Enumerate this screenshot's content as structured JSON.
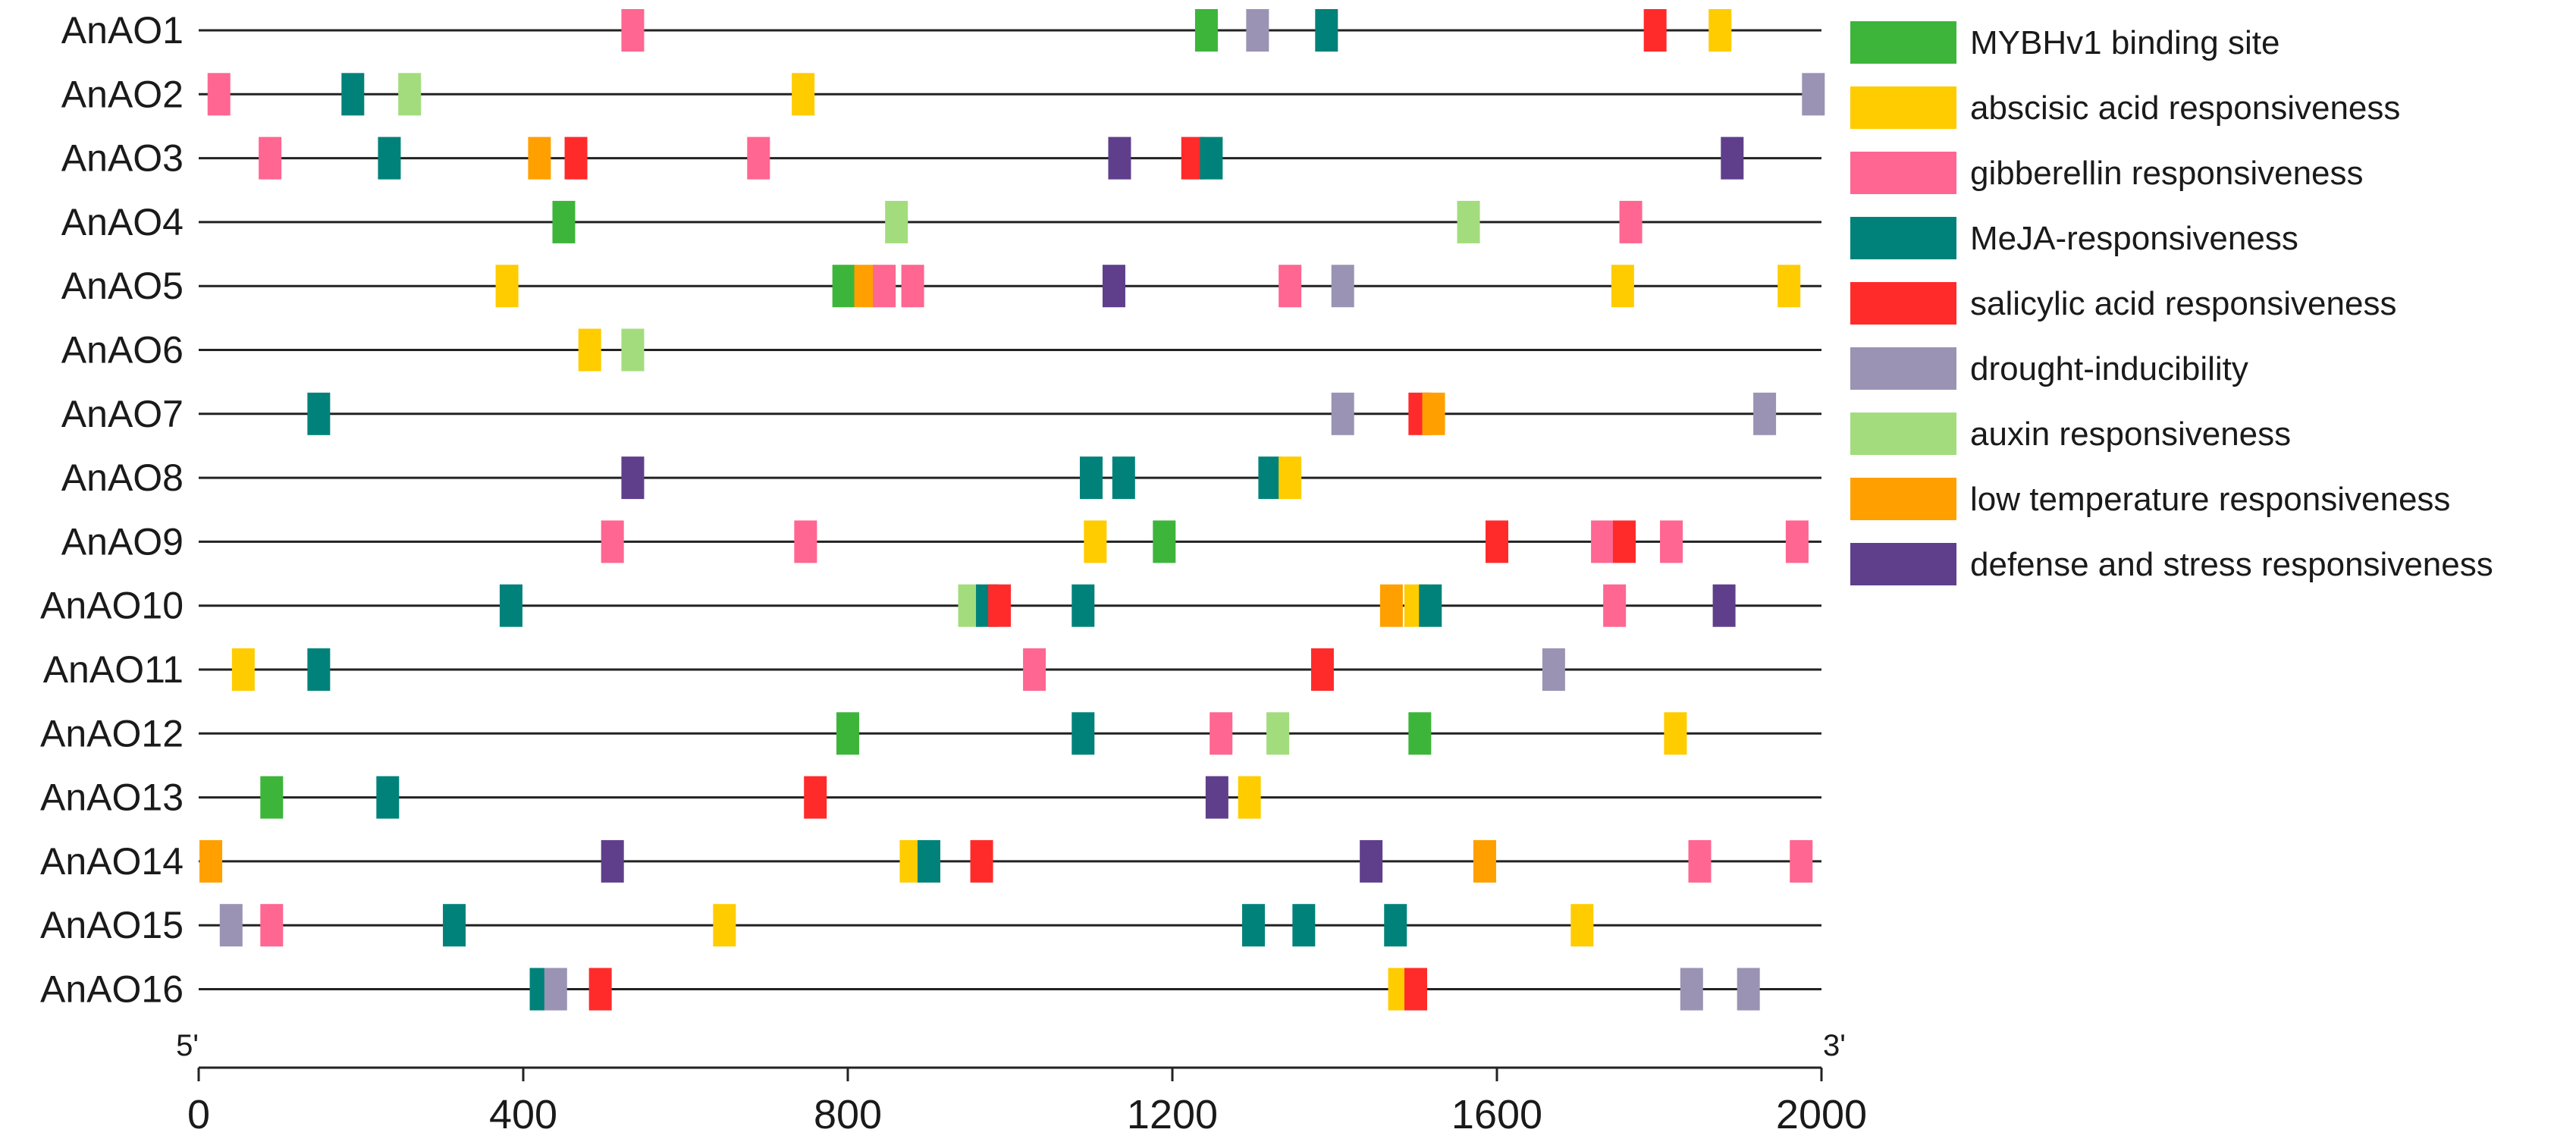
{
  "chart_data": {
    "type": "promoter-element-map",
    "x_axis": {
      "min": 0,
      "max": 2000,
      "ticks": [
        0,
        400,
        800,
        1200,
        1600,
        2000
      ],
      "start_label": "5'",
      "end_label": "3'"
    },
    "elements": [
      {
        "key": "mybhv1",
        "label": "MYBHv1 binding site",
        "color": "#3db53a"
      },
      {
        "key": "aba",
        "label": "abscisic acid responsiveness",
        "color": "#ffcc00"
      },
      {
        "key": "ga",
        "label": "gibberellin responsiveness",
        "color": "#ff6691"
      },
      {
        "key": "meja",
        "label": "MeJA-responsiveness",
        "color": "#00827a"
      },
      {
        "key": "sa",
        "label": "salicylic acid responsiveness",
        "color": "#ff2b2b"
      },
      {
        "key": "drought",
        "label": "drought-inducibility",
        "color": "#9b93b4"
      },
      {
        "key": "auxin",
        "label": "auxin responsiveness",
        "color": "#a3dc7d"
      },
      {
        "key": "lowtemp",
        "label": "low temperature responsiveness",
        "color": "#ffa000"
      },
      {
        "key": "defense",
        "label": "defense and stress responsiveness",
        "color": "#5f3f8c"
      }
    ],
    "genes": [
      {
        "name": "AnAO1",
        "sites": [
          [
            535,
            "ga"
          ],
          [
            1242,
            "mybhv1"
          ],
          [
            1305,
            "drought"
          ],
          [
            1390,
            "meja"
          ],
          [
            1795,
            "sa"
          ],
          [
            1875,
            "aba"
          ]
        ]
      },
      {
        "name": "AnAO2",
        "sites": [
          [
            25,
            "ga"
          ],
          [
            190,
            "meja"
          ],
          [
            260,
            "auxin"
          ],
          [
            745,
            "aba"
          ],
          [
            1990,
            "drought"
          ]
        ]
      },
      {
        "name": "AnAO3",
        "sites": [
          [
            88,
            "ga"
          ],
          [
            235,
            "meja"
          ],
          [
            420,
            "lowtemp"
          ],
          [
            465,
            "sa"
          ],
          [
            690,
            "ga"
          ],
          [
            1135,
            "defense"
          ],
          [
            1225,
            "sa"
          ],
          [
            1248,
            "meja"
          ],
          [
            1890,
            "defense"
          ]
        ]
      },
      {
        "name": "AnAO4",
        "sites": [
          [
            450,
            "mybhv1"
          ],
          [
            860,
            "auxin"
          ],
          [
            1565,
            "auxin"
          ],
          [
            1765,
            "ga"
          ]
        ]
      },
      {
        "name": "AnAO5",
        "sites": [
          [
            380,
            "aba"
          ],
          [
            795,
            "mybhv1"
          ],
          [
            822,
            "lowtemp"
          ],
          [
            845,
            "ga"
          ],
          [
            880,
            "ga"
          ],
          [
            1128,
            "defense"
          ],
          [
            1345,
            "ga"
          ],
          [
            1410,
            "drought"
          ],
          [
            1755,
            "aba"
          ],
          [
            1960,
            "aba"
          ]
        ]
      },
      {
        "name": "AnAO6",
        "sites": [
          [
            482,
            "aba"
          ],
          [
            535,
            "auxin"
          ]
        ]
      },
      {
        "name": "AnAO7",
        "sites": [
          [
            148,
            "meja"
          ],
          [
            1410,
            "drought"
          ],
          [
            1505,
            "sa"
          ],
          [
            1522,
            "lowtemp"
          ],
          [
            1930,
            "drought"
          ]
        ]
      },
      {
        "name": "AnAO8",
        "sites": [
          [
            535,
            "defense"
          ],
          [
            1100,
            "meja"
          ],
          [
            1140,
            "meja"
          ],
          [
            1320,
            "meja"
          ],
          [
            1345,
            "aba"
          ]
        ]
      },
      {
        "name": "AnAO9",
        "sites": [
          [
            510,
            "ga"
          ],
          [
            748,
            "ga"
          ],
          [
            1105,
            "aba"
          ],
          [
            1190,
            "mybhv1"
          ],
          [
            1600,
            "sa"
          ],
          [
            1730,
            "ga"
          ],
          [
            1757,
            "sa"
          ],
          [
            1815,
            "ga"
          ],
          [
            1970,
            "ga"
          ]
        ]
      },
      {
        "name": "AnAO10",
        "sites": [
          [
            385,
            "meja"
          ],
          [
            950,
            "auxin"
          ],
          [
            972,
            "meja"
          ],
          [
            987,
            "sa"
          ],
          [
            1090,
            "meja"
          ],
          [
            1470,
            "lowtemp"
          ],
          [
            1500,
            "aba"
          ],
          [
            1518,
            "meja"
          ],
          [
            1745,
            "ga"
          ],
          [
            1880,
            "defense"
          ]
        ]
      },
      {
        "name": "AnAO11",
        "sites": [
          [
            55,
            "aba"
          ],
          [
            148,
            "meja"
          ],
          [
            1030,
            "ga"
          ],
          [
            1385,
            "sa"
          ],
          [
            1670,
            "drought"
          ]
        ]
      },
      {
        "name": "AnAO12",
        "sites": [
          [
            800,
            "mybhv1"
          ],
          [
            1090,
            "meja"
          ],
          [
            1260,
            "ga"
          ],
          [
            1330,
            "auxin"
          ],
          [
            1505,
            "mybhv1"
          ],
          [
            1820,
            "aba"
          ]
        ]
      },
      {
        "name": "AnAO13",
        "sites": [
          [
            90,
            "mybhv1"
          ],
          [
            233,
            "meja"
          ],
          [
            760,
            "sa"
          ],
          [
            1255,
            "defense"
          ],
          [
            1295,
            "aba"
          ]
        ]
      },
      {
        "name": "AnAO14",
        "sites": [
          [
            15,
            "lowtemp"
          ],
          [
            510,
            "defense"
          ],
          [
            878,
            "aba"
          ],
          [
            900,
            "meja"
          ],
          [
            965,
            "sa"
          ],
          [
            1445,
            "defense"
          ],
          [
            1585,
            "lowtemp"
          ],
          [
            1850,
            "ga"
          ],
          [
            1975,
            "ga"
          ]
        ]
      },
      {
        "name": "AnAO15",
        "sites": [
          [
            40,
            "drought"
          ],
          [
            90,
            "ga"
          ],
          [
            315,
            "meja"
          ],
          [
            648,
            "aba"
          ],
          [
            1300,
            "meja"
          ],
          [
            1362,
            "meja"
          ],
          [
            1475,
            "meja"
          ],
          [
            1705,
            "aba"
          ]
        ]
      },
      {
        "name": "AnAO16",
        "sites": [
          [
            422,
            "meja"
          ],
          [
            440,
            "drought"
          ],
          [
            495,
            "sa"
          ],
          [
            1480,
            "aba"
          ],
          [
            1500,
            "sa"
          ],
          [
            1840,
            "drought"
          ],
          [
            1910,
            "drought"
          ]
        ]
      }
    ]
  }
}
